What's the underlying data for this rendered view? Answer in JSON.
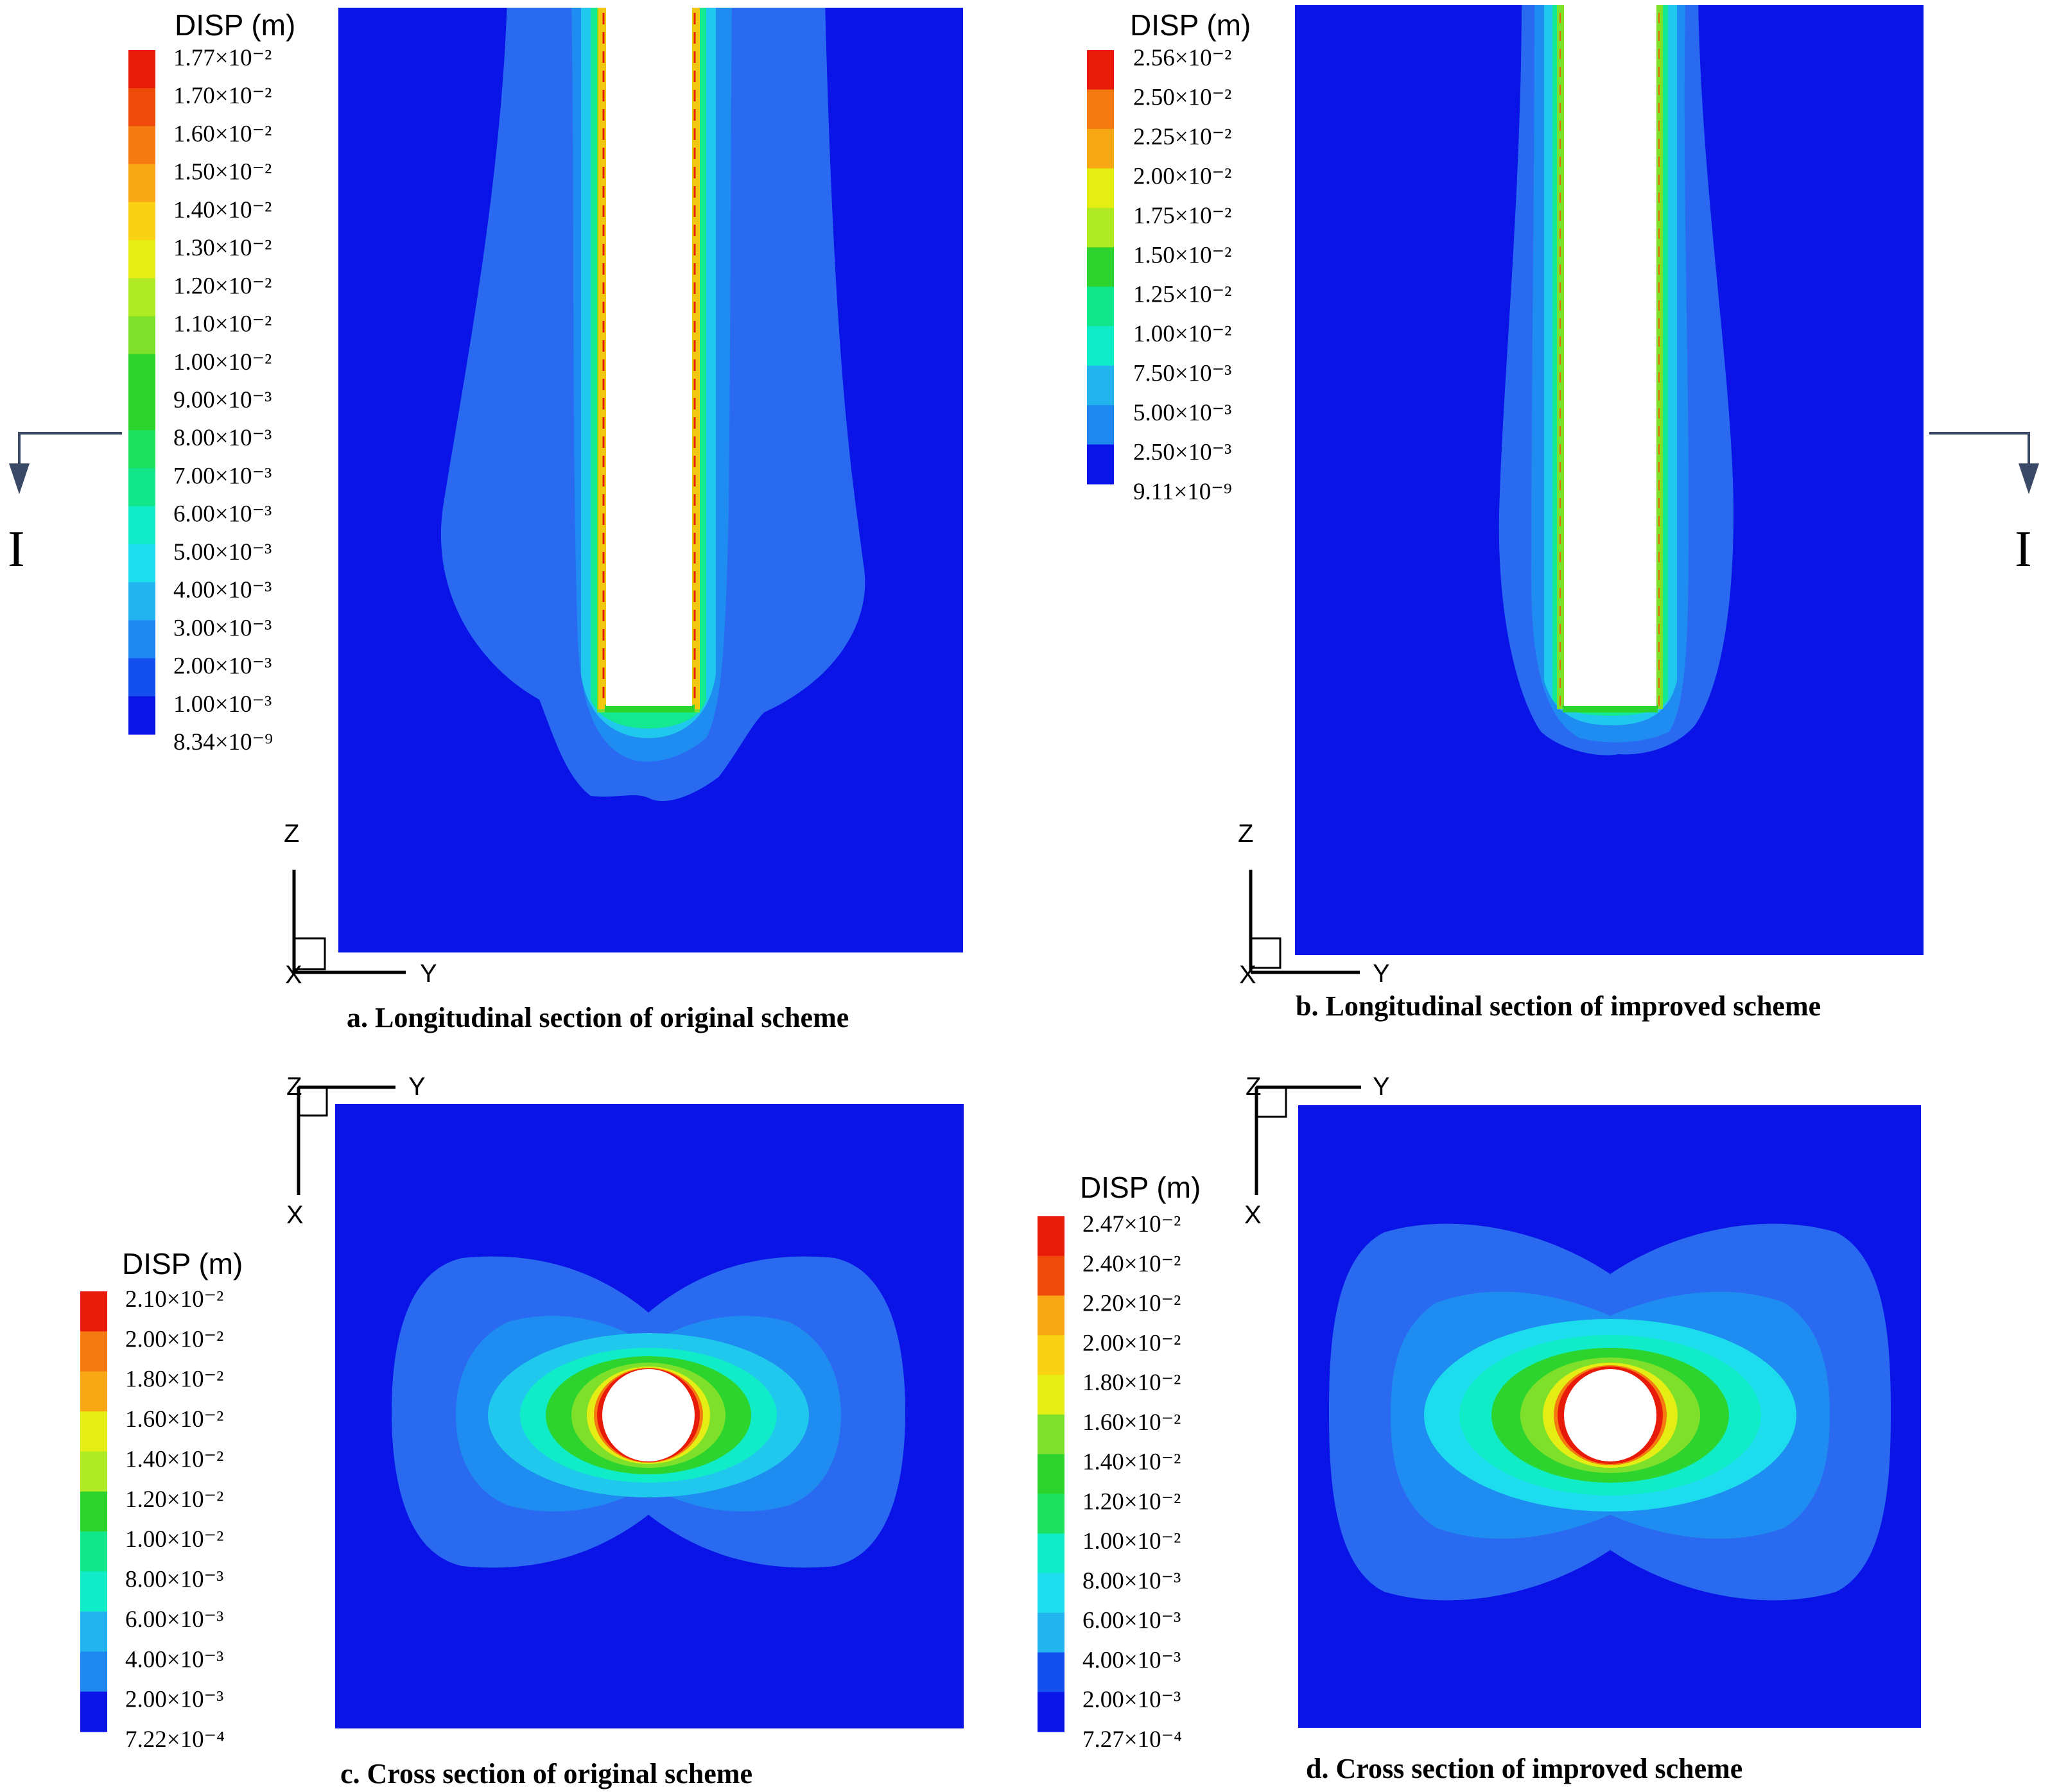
{
  "legend_title": "DISP (m)",
  "colors": {
    "background_blue": "#0a14e6",
    "white_cavity": "#ffffff",
    "section_arrow": "#3a4a66"
  },
  "legend_colors": [
    "#0a14e6",
    "#1450f0",
    "#1e88f0",
    "#22b4ee",
    "#1cdcee",
    "#10ecc8",
    "#12e68c",
    "#1ee060",
    "#2ed42e",
    "#7ee02a",
    "#b0ea22",
    "#e4ee14",
    "#fad214",
    "#f8a814",
    "#f57a10",
    "#f04a0a",
    "#e81a0a"
  ],
  "section_mark": {
    "label": "I"
  },
  "axes": {
    "x": "X",
    "y": "Y",
    "z": "Z"
  },
  "panels": [
    {
      "id": "a",
      "caption": "a. Longitudinal section of original scheme",
      "legend_labels": [
        "1.77×10⁻²",
        "1.70×10⁻²",
        "1.60×10⁻²",
        "1.50×10⁻²",
        "1.40×10⁻²",
        "1.30×10⁻²",
        "1.20×10⁻²",
        "1.10×10⁻²",
        "1.00×10⁻²",
        "9.00×10⁻³",
        "8.00×10⁻³",
        "7.00×10⁻³",
        "6.00×10⁻³",
        "5.00×10⁻³",
        "4.00×10⁻³",
        "3.00×10⁻³",
        "2.00×10⁻³",
        "1.00×10⁻³",
        "8.34×10⁻⁹"
      ]
    },
    {
      "id": "b",
      "caption": "b. Longitudinal section of improved scheme",
      "legend_labels": [
        "2.56×10⁻²",
        "2.50×10⁻²",
        "2.25×10⁻²",
        "2.00×10⁻²",
        "1.75×10⁻²",
        "1.50×10⁻²",
        "1.25×10⁻²",
        "1.00×10⁻²",
        "7.50×10⁻³",
        "5.00×10⁻³",
        "2.50×10⁻³",
        "9.11×10⁻⁹"
      ]
    },
    {
      "id": "c",
      "caption": "c. Cross section of original scheme",
      "legend_labels": [
        "2.10×10⁻²",
        "2.00×10⁻²",
        "1.80×10⁻²",
        "1.60×10⁻²",
        "1.40×10⁻²",
        "1.20×10⁻²",
        "1.00×10⁻²",
        "8.00×10⁻³",
        "6.00×10⁻³",
        "4.00×10⁻³",
        "2.00×10⁻³",
        "7.22×10⁻⁴"
      ]
    },
    {
      "id": "d",
      "caption": "d. Cross section of improved scheme",
      "legend_labels": [
        "2.47×10⁻²",
        "2.40×10⁻²",
        "2.20×10⁻²",
        "2.00×10⁻²",
        "1.80×10⁻²",
        "1.60×10⁻²",
        "1.40×10⁻²",
        "1.20×10⁻²",
        "1.00×10⁻²",
        "8.00×10⁻³",
        "6.00×10⁻³",
        "4.00×10⁻³",
        "2.00×10⁻³",
        "7.27×10⁻⁴"
      ]
    }
  ]
}
